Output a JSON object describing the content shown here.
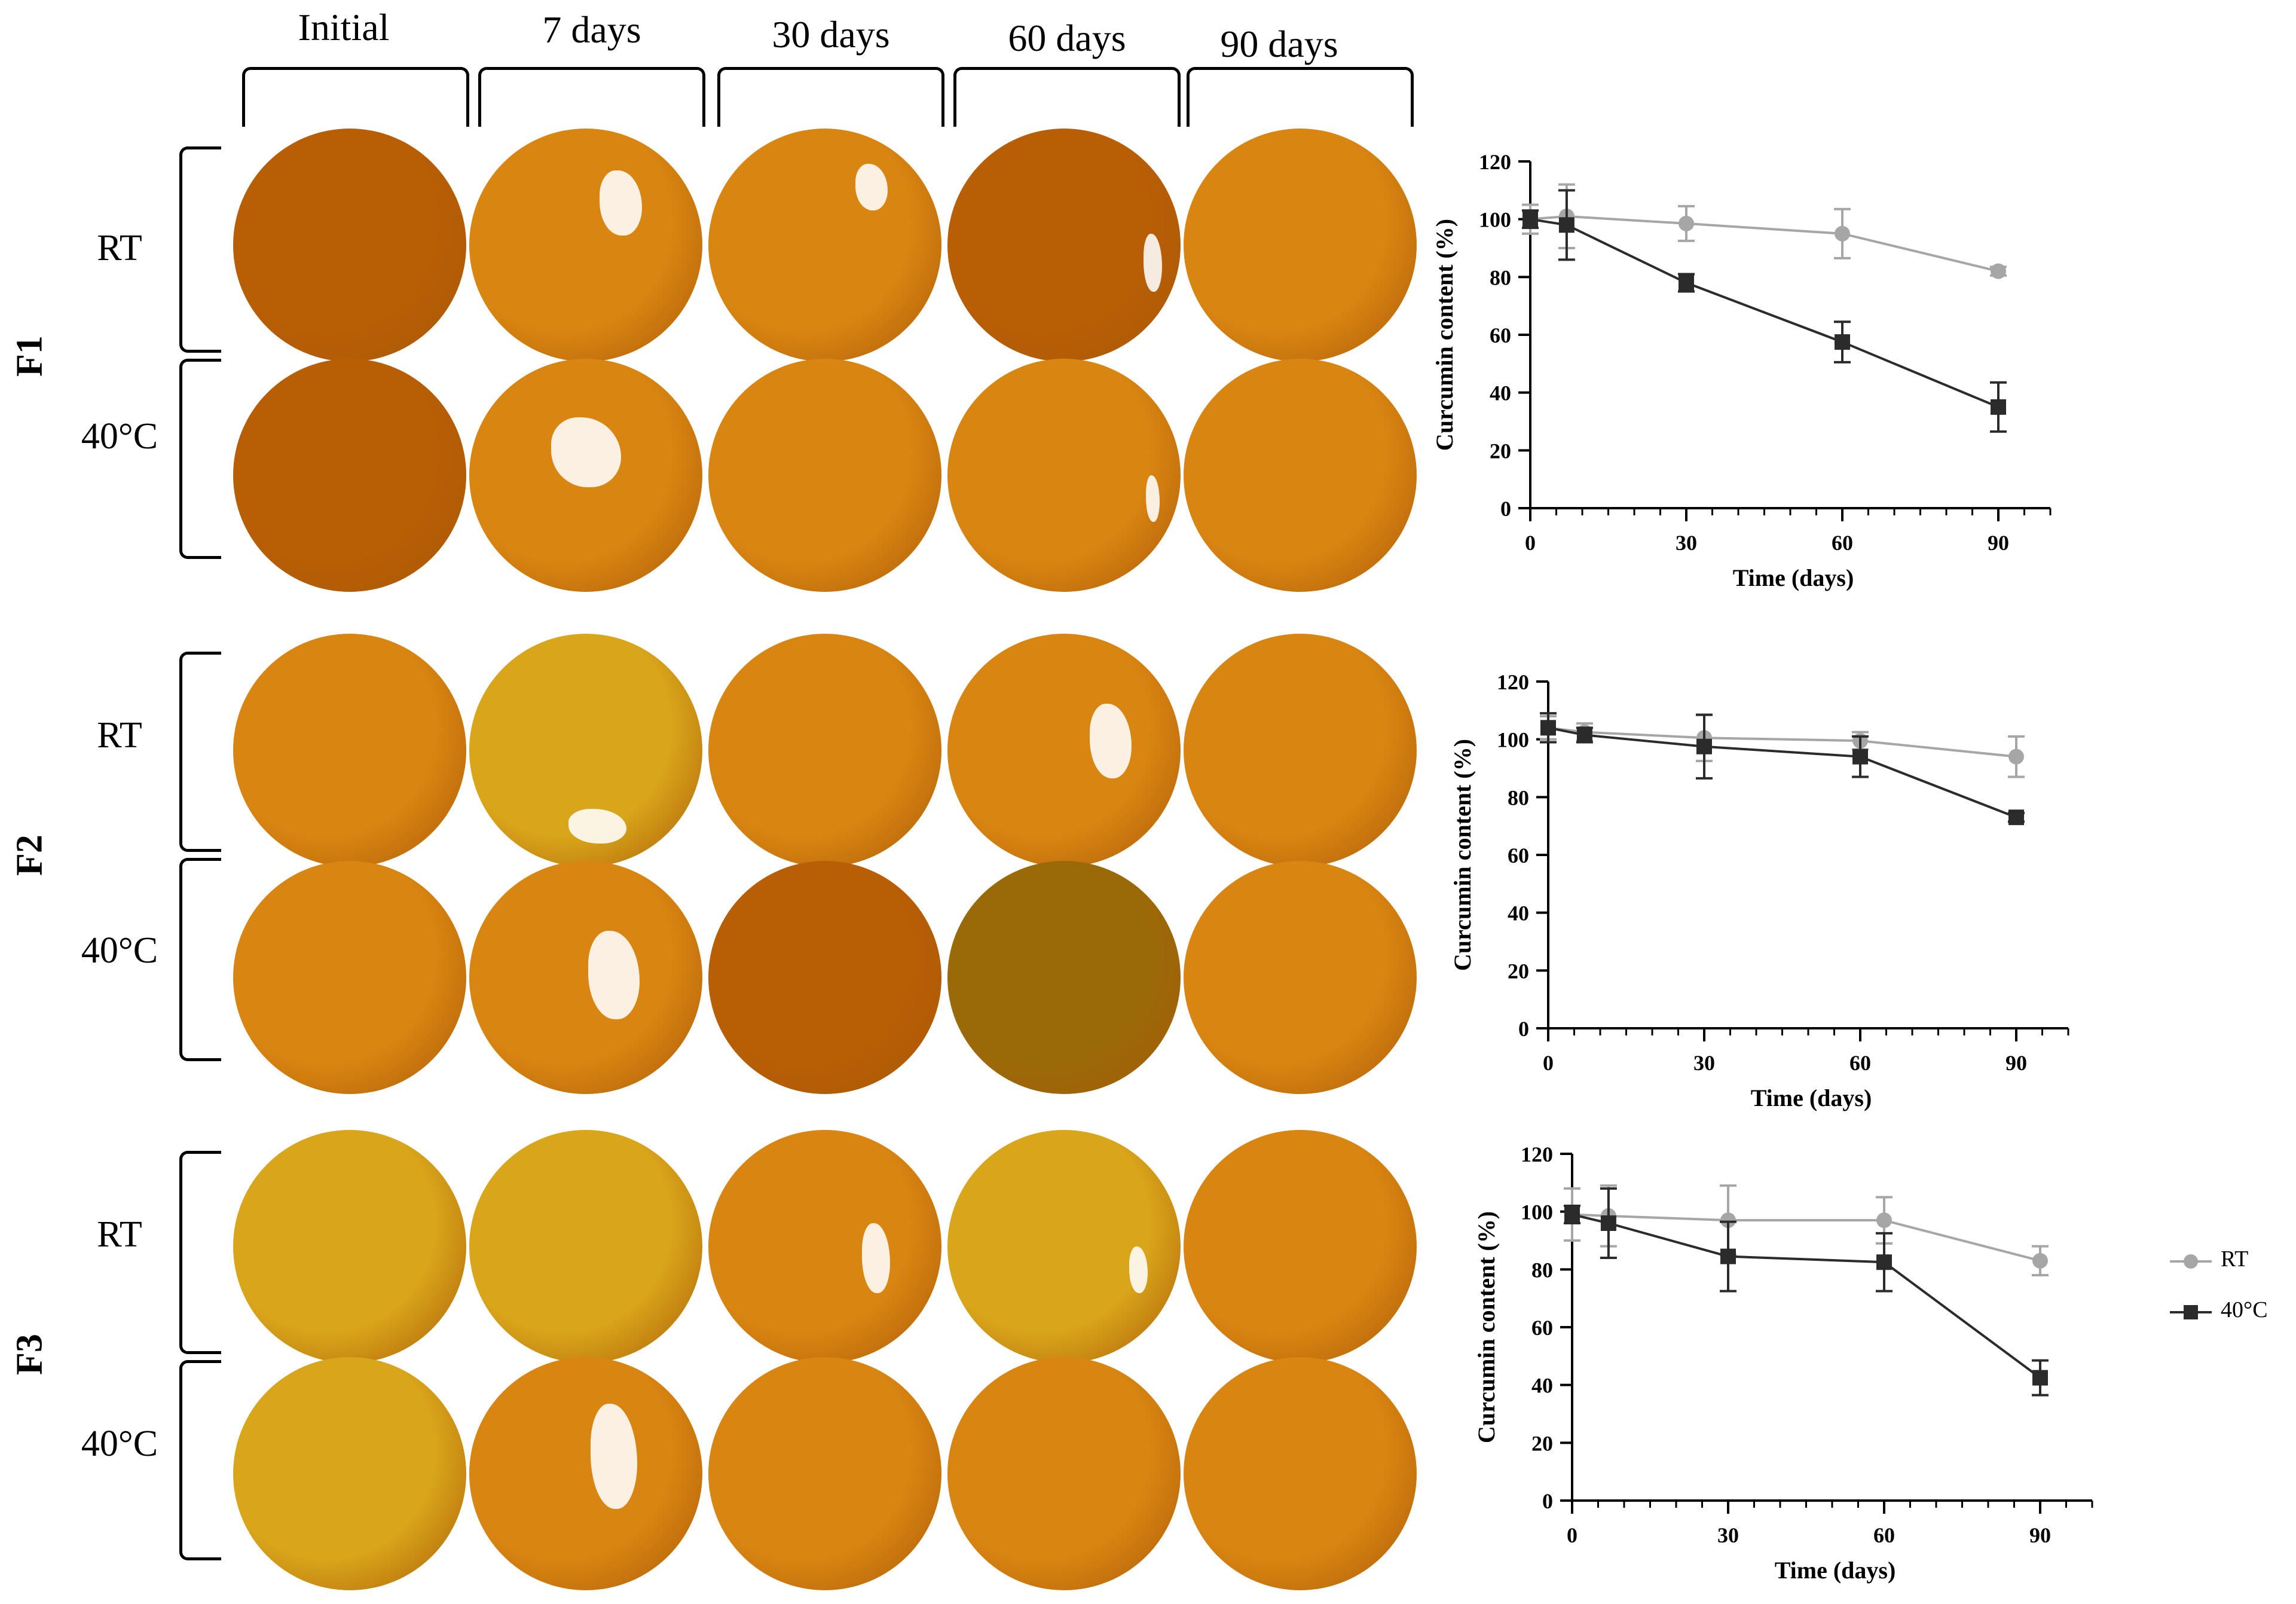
{
  "columns": [
    "Initial",
    "7 days",
    "30 days",
    "60 days",
    "90 days"
  ],
  "formulations": [
    {
      "id": "F1",
      "conditions": [
        "RT",
        "40°C"
      ]
    },
    {
      "id": "F2",
      "conditions": [
        "RT",
        "40°C"
      ]
    },
    {
      "id": "F3",
      "conditions": [
        "RT",
        "40°C"
      ]
    }
  ],
  "colors": {
    "rt": "#a6a6a6",
    "hot": "#2b2b2b",
    "dish_orange": "#d98512",
    "dish_dark": "#b85e05",
    "dish_yellow": "#d9a51a"
  },
  "legend": {
    "rt": "RT",
    "hot": "40°C"
  },
  "chart_data": [
    {
      "type": "line",
      "panel": "F1",
      "xlabel": "Time (days)",
      "ylabel": "Curcumin content (%)",
      "xlim": [
        0,
        100
      ],
      "ylim": [
        0,
        120
      ],
      "xticks": [
        0,
        30,
        60,
        90
      ],
      "yticks": [
        0,
        20,
        40,
        60,
        80,
        100,
        120
      ],
      "x": [
        0,
        7,
        30,
        60,
        90
      ],
      "series": [
        {
          "name": "RT",
          "values": [
            100,
            101,
            98.5,
            95,
            82
          ],
          "err": [
            5,
            11,
            6,
            8.5,
            1.5
          ]
        },
        {
          "name": "40°C",
          "values": [
            100,
            98,
            78,
            57.5,
            35
          ],
          "err": [
            3,
            12,
            3,
            7,
            8.5
          ]
        }
      ]
    },
    {
      "type": "line",
      "panel": "F2",
      "xlabel": "Time (days)",
      "ylabel": "Curcumin content (%)",
      "xlim": [
        0,
        100
      ],
      "ylim": [
        0,
        120
      ],
      "xticks": [
        0,
        30,
        60,
        90
      ],
      "yticks": [
        0,
        20,
        40,
        60,
        80,
        100,
        120
      ],
      "x": [
        0,
        7,
        30,
        60,
        90
      ],
      "series": [
        {
          "name": "RT",
          "values": [
            104,
            102.5,
            100.5,
            99.5,
            94
          ],
          "err": [
            4,
            3,
            8,
            3,
            7
          ]
        },
        {
          "name": "40°C",
          "values": [
            104,
            101.5,
            97.5,
            94,
            73
          ],
          "err": [
            5,
            2.5,
            11,
            7,
            1.5
          ]
        }
      ]
    },
    {
      "type": "line",
      "panel": "F3",
      "xlabel": "Time (days)",
      "ylabel": "Curcumin content (%)",
      "xlim": [
        0,
        100
      ],
      "ylim": [
        0,
        120
      ],
      "xticks": [
        0,
        30,
        60,
        90
      ],
      "yticks": [
        0,
        20,
        40,
        60,
        80,
        100,
        120
      ],
      "x": [
        0,
        7,
        30,
        60,
        90
      ],
      "series": [
        {
          "name": "RT",
          "values": [
            99,
            98.5,
            97,
            97,
            83
          ],
          "err": [
            9,
            10.5,
            12,
            8,
            5
          ]
        },
        {
          "name": "40°C",
          "values": [
            99,
            96,
            84.5,
            82.5,
            42.5
          ],
          "err": [
            3,
            12,
            12,
            10,
            6
          ]
        }
      ]
    }
  ]
}
